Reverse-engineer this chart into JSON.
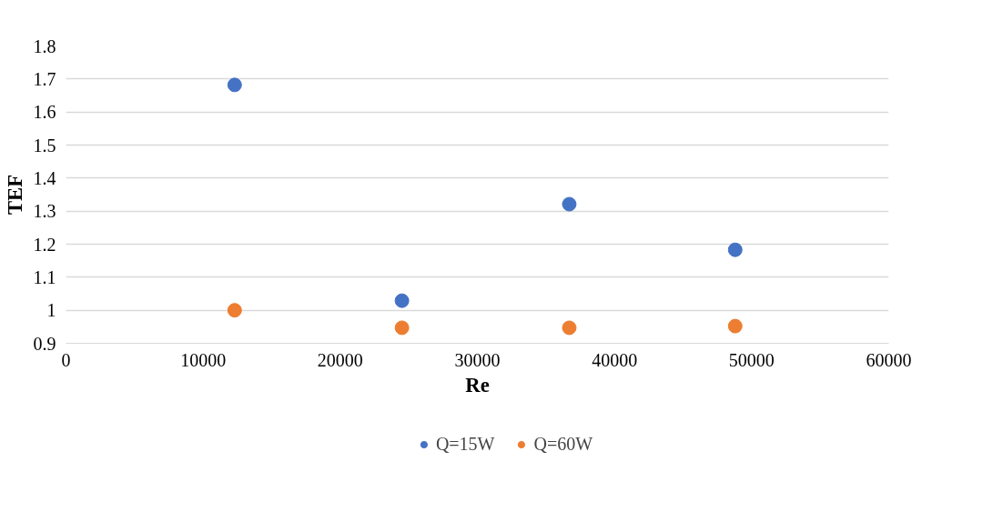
{
  "chart_data": {
    "type": "scatter",
    "xlabel": "Re",
    "ylabel": "TEF",
    "x": [
      12300,
      24500,
      36700,
      48800
    ],
    "series": [
      {
        "name": "Q=15W",
        "color": "#4472c4",
        "values": [
          1.682,
          1.029,
          1.321,
          1.183
        ]
      },
      {
        "name": "Q=60W",
        "color": "#ed7d31",
        "values": [
          1.0,
          0.947,
          0.947,
          0.952
        ]
      }
    ],
    "xlim": [
      0,
      60000
    ],
    "xticks": [
      0,
      10000,
      20000,
      30000,
      40000,
      50000,
      60000
    ],
    "ylim": [
      0.9,
      1.8
    ],
    "yticks": [
      {
        "value": 0.9,
        "label": "0.9"
      },
      {
        "value": 1.0,
        "label": "1"
      },
      1.1,
      1.2,
      1.3,
      1.4,
      1.5,
      1.6,
      1.7,
      1.8
    ],
    "grid": "y",
    "legend": "bottom",
    "marker": "circle"
  }
}
